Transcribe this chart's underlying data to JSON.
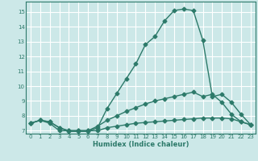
{
  "title": "",
  "xlabel": "Humidex (Indice chaleur)",
  "ylabel": "",
  "background_color": "#cce8e8",
  "grid_color": "#ffffff",
  "line_color": "#2d7a6a",
  "xlim": [
    -0.5,
    23.5
  ],
  "ylim": [
    6.8,
    15.7
  ],
  "xticks": [
    0,
    1,
    2,
    3,
    4,
    5,
    6,
    7,
    8,
    9,
    10,
    11,
    12,
    13,
    14,
    15,
    16,
    17,
    18,
    19,
    20,
    21,
    22,
    23
  ],
  "yticks": [
    7,
    8,
    9,
    10,
    11,
    12,
    13,
    14,
    15
  ],
  "line1_x": [
    0,
    1,
    2,
    3,
    4,
    5,
    6,
    7,
    8,
    9,
    10,
    11,
    12,
    13,
    14,
    15,
    16,
    17,
    18,
    19,
    20,
    21,
    22,
    23
  ],
  "line1_y": [
    7.5,
    7.7,
    7.5,
    7.0,
    7.0,
    7.0,
    7.0,
    7.0,
    7.2,
    7.3,
    7.4,
    7.5,
    7.55,
    7.6,
    7.65,
    7.7,
    7.75,
    7.8,
    7.85,
    7.85,
    7.85,
    7.8,
    7.6,
    7.4
  ],
  "line2_x": [
    0,
    1,
    2,
    3,
    4,
    5,
    6,
    7,
    8,
    9,
    10,
    11,
    12,
    13,
    14,
    15,
    16,
    17,
    18,
    19,
    20,
    21,
    22,
    23
  ],
  "line2_y": [
    7.5,
    7.7,
    7.6,
    7.2,
    7.0,
    7.0,
    7.0,
    7.3,
    7.7,
    8.0,
    8.3,
    8.55,
    8.8,
    9.0,
    9.15,
    9.3,
    9.45,
    9.6,
    9.3,
    9.45,
    8.9,
    8.1,
    7.6,
    7.4
  ],
  "line3_x": [
    0,
    1,
    2,
    3,
    4,
    5,
    6,
    7,
    8,
    9,
    10,
    11,
    12,
    13,
    14,
    15,
    16,
    17,
    18,
    19,
    20,
    21,
    22,
    23
  ],
  "line3_y": [
    7.5,
    7.7,
    7.6,
    7.2,
    6.95,
    6.95,
    6.95,
    7.2,
    8.5,
    9.5,
    10.5,
    11.5,
    12.8,
    13.35,
    14.4,
    15.1,
    15.2,
    15.1,
    13.1,
    9.3,
    9.45,
    8.9,
    8.1,
    7.4
  ],
  "marker": "D",
  "markersize": 2.5,
  "linewidth": 1.0
}
